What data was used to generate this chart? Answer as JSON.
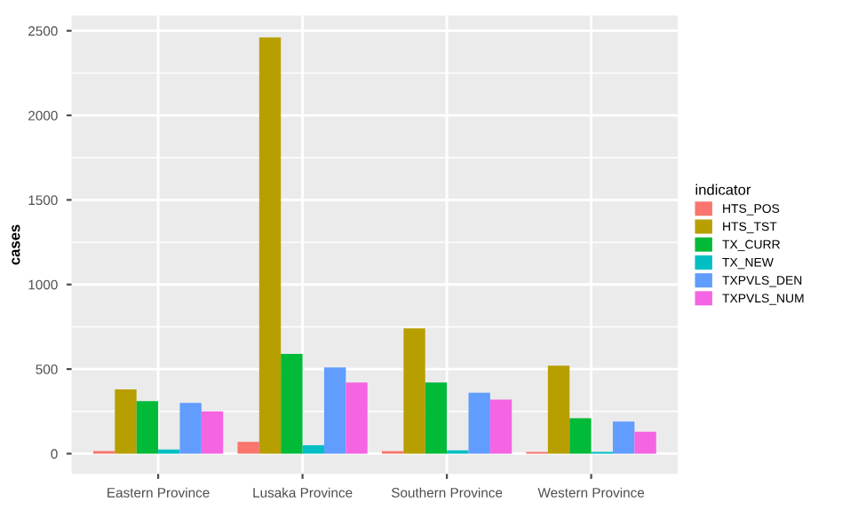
{
  "chart_data": {
    "type": "bar",
    "ylabel": "cases",
    "legend_title": "indicator",
    "categories": [
      "Eastern Province",
      "Lusaka Province",
      "Southern Province",
      "Western Province"
    ],
    "series": [
      {
        "name": "HTS_POS",
        "color": "#f8766d",
        "values": [
          15,
          70,
          15,
          10
        ]
      },
      {
        "name": "HTS_TST",
        "color": "#b79f00",
        "values": [
          380,
          2460,
          740,
          520
        ]
      },
      {
        "name": "TX_CURR",
        "color": "#00ba38",
        "values": [
          310,
          590,
          420,
          210
        ]
      },
      {
        "name": "TX_NEW",
        "color": "#00bfc4",
        "values": [
          25,
          50,
          20,
          10
        ]
      },
      {
        "name": "TXPVLS_DEN",
        "color": "#619cff",
        "values": [
          300,
          510,
          360,
          190
        ]
      },
      {
        "name": "TXPVLS_NUM",
        "color": "#f564e3",
        "values": [
          250,
          420,
          320,
          130
        ]
      }
    ],
    "ylim": [
      -120,
      2590
    ],
    "yticks": [
      0,
      500,
      1000,
      1500,
      2000,
      2500
    ],
    "grid": true,
    "legend": "right"
  }
}
